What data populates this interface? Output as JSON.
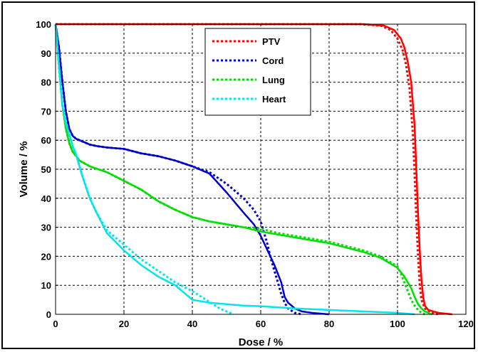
{
  "chart_data": {
    "type": "line",
    "title": "",
    "xlabel": "Dose / %",
    "ylabel": "Volume / %",
    "xlim": [
      0,
      120
    ],
    "ylim": [
      0,
      100
    ],
    "xticks": [
      0,
      20,
      40,
      60,
      80,
      100,
      120
    ],
    "yticks": [
      0,
      10,
      20,
      30,
      40,
      50,
      60,
      70,
      80,
      90,
      100
    ],
    "grid": true,
    "legend_position": "top-center",
    "series": [
      {
        "name": "PTV",
        "color": "#ff0000",
        "solid": {
          "x": [
            0,
            90,
            96,
            99,
            101,
            102,
            103,
            104,
            105,
            105.5,
            106,
            106.5,
            107,
            107.5,
            108,
            109,
            112,
            116
          ],
          "y": [
            100,
            100,
            99.5,
            98,
            95,
            92,
            87,
            80,
            65,
            50,
            35,
            22,
            12,
            6,
            3,
            1.5,
            0.5,
            0
          ]
        },
        "dotted": {
          "x": [
            0,
            89,
            95,
            98,
            100,
            101.5,
            102.5,
            103.5,
            104.5,
            105,
            105.5,
            106,
            106.5,
            107,
            108,
            110,
            112
          ],
          "y": [
            100,
            100,
            99.5,
            98,
            95,
            91,
            86,
            78,
            62,
            48,
            33,
            20,
            10,
            5,
            2,
            0.5,
            0
          ]
        }
      },
      {
        "name": "Cord",
        "color": "#0000cc",
        "solid": {
          "x": [
            0,
            1,
            2,
            3,
            4,
            5,
            6,
            8,
            10,
            12,
            15,
            20,
            25,
            30,
            35,
            40,
            45,
            50,
            55,
            58,
            60,
            62,
            64,
            66,
            67,
            68,
            70,
            72,
            75,
            80
          ],
          "y": [
            100,
            92,
            80,
            70,
            64,
            61.5,
            60.5,
            59.5,
            58.5,
            58,
            57.5,
            57,
            55.5,
            54.5,
            53,
            51,
            48.5,
            42,
            35,
            31,
            27,
            22,
            17,
            11,
            6,
            4,
            2,
            1,
            0.5,
            0
          ]
        },
        "dotted": {
          "x": [
            0,
            1,
            2,
            3,
            4,
            5,
            6,
            8,
            10,
            12,
            15,
            20,
            25,
            30,
            35,
            40,
            45,
            50,
            55,
            58,
            60,
            61,
            62,
            63,
            64,
            65,
            66,
            67,
            68,
            70,
            72
          ],
          "y": [
            100,
            92,
            80,
            70,
            64,
            61.5,
            60.5,
            59.5,
            58.5,
            58,
            57.5,
            57,
            55.5,
            54.5,
            53,
            51,
            49,
            45,
            40,
            36,
            32,
            28,
            24,
            19,
            15,
            11,
            7,
            4,
            2,
            0.5,
            0
          ]
        }
      },
      {
        "name": "Lung",
        "color": "#00dd00",
        "solid": {
          "x": [
            0,
            1,
            2,
            3,
            4,
            5,
            7,
            10,
            15,
            20,
            25,
            30,
            35,
            40,
            45,
            50,
            55,
            60,
            65,
            70,
            75,
            80,
            85,
            90,
            95,
            100,
            102,
            104,
            105,
            106,
            107,
            108,
            109,
            110
          ],
          "y": [
            100,
            85,
            72,
            64,
            59,
            56,
            53,
            51,
            49,
            46,
            43,
            39,
            36,
            33.5,
            32,
            31,
            30,
            28.5,
            27.5,
            26.5,
            25.5,
            24.5,
            23,
            21.5,
            19.5,
            16,
            13,
            9,
            6,
            3.5,
            2,
            1,
            0.5,
            0
          ]
        },
        "dotted": {
          "x": [
            0,
            1,
            2,
            3,
            4,
            5,
            7,
            10,
            15,
            20,
            25,
            30,
            35,
            40,
            45,
            50,
            55,
            60,
            65,
            70,
            75,
            80,
            85,
            90,
            95,
            100,
            101,
            102,
            103,
            104,
            105,
            106,
            107,
            108
          ],
          "y": [
            100,
            85,
            72,
            64,
            59,
            56,
            53,
            51,
            49,
            46,
            43,
            39,
            36,
            33.5,
            32,
            31,
            30,
            29.5,
            28,
            27,
            26,
            25,
            23.5,
            22,
            20,
            16.5,
            14,
            11,
            8,
            5,
            3,
            1.5,
            0.5,
            0
          ]
        }
      },
      {
        "name": "Heart",
        "color": "#00e5ee",
        "solid": {
          "x": [
            0,
            1,
            2,
            3,
            4,
            5,
            6,
            8,
            10,
            12,
            15,
            20,
            25,
            30,
            35,
            38,
            40,
            45,
            50,
            55,
            60,
            70,
            80,
            90,
            100,
            105
          ],
          "y": [
            100,
            85,
            72,
            66,
            62,
            58,
            55,
            47,
            40,
            35,
            28,
            22,
            17,
            13,
            10,
            7,
            5,
            4,
            3.5,
            3,
            2.8,
            2,
            1.5,
            1,
            0.5,
            0
          ]
        },
        "dotted": {
          "x": [
            0,
            1,
            2,
            3,
            4,
            5,
            6,
            8,
            10,
            12,
            15,
            20,
            25,
            30,
            35,
            40,
            44,
            48,
            52
          ],
          "y": [
            100,
            85,
            72,
            66,
            62,
            58,
            55,
            47,
            40,
            35,
            29,
            24,
            19,
            15,
            11,
            8,
            5,
            2,
            0
          ]
        }
      }
    ]
  }
}
